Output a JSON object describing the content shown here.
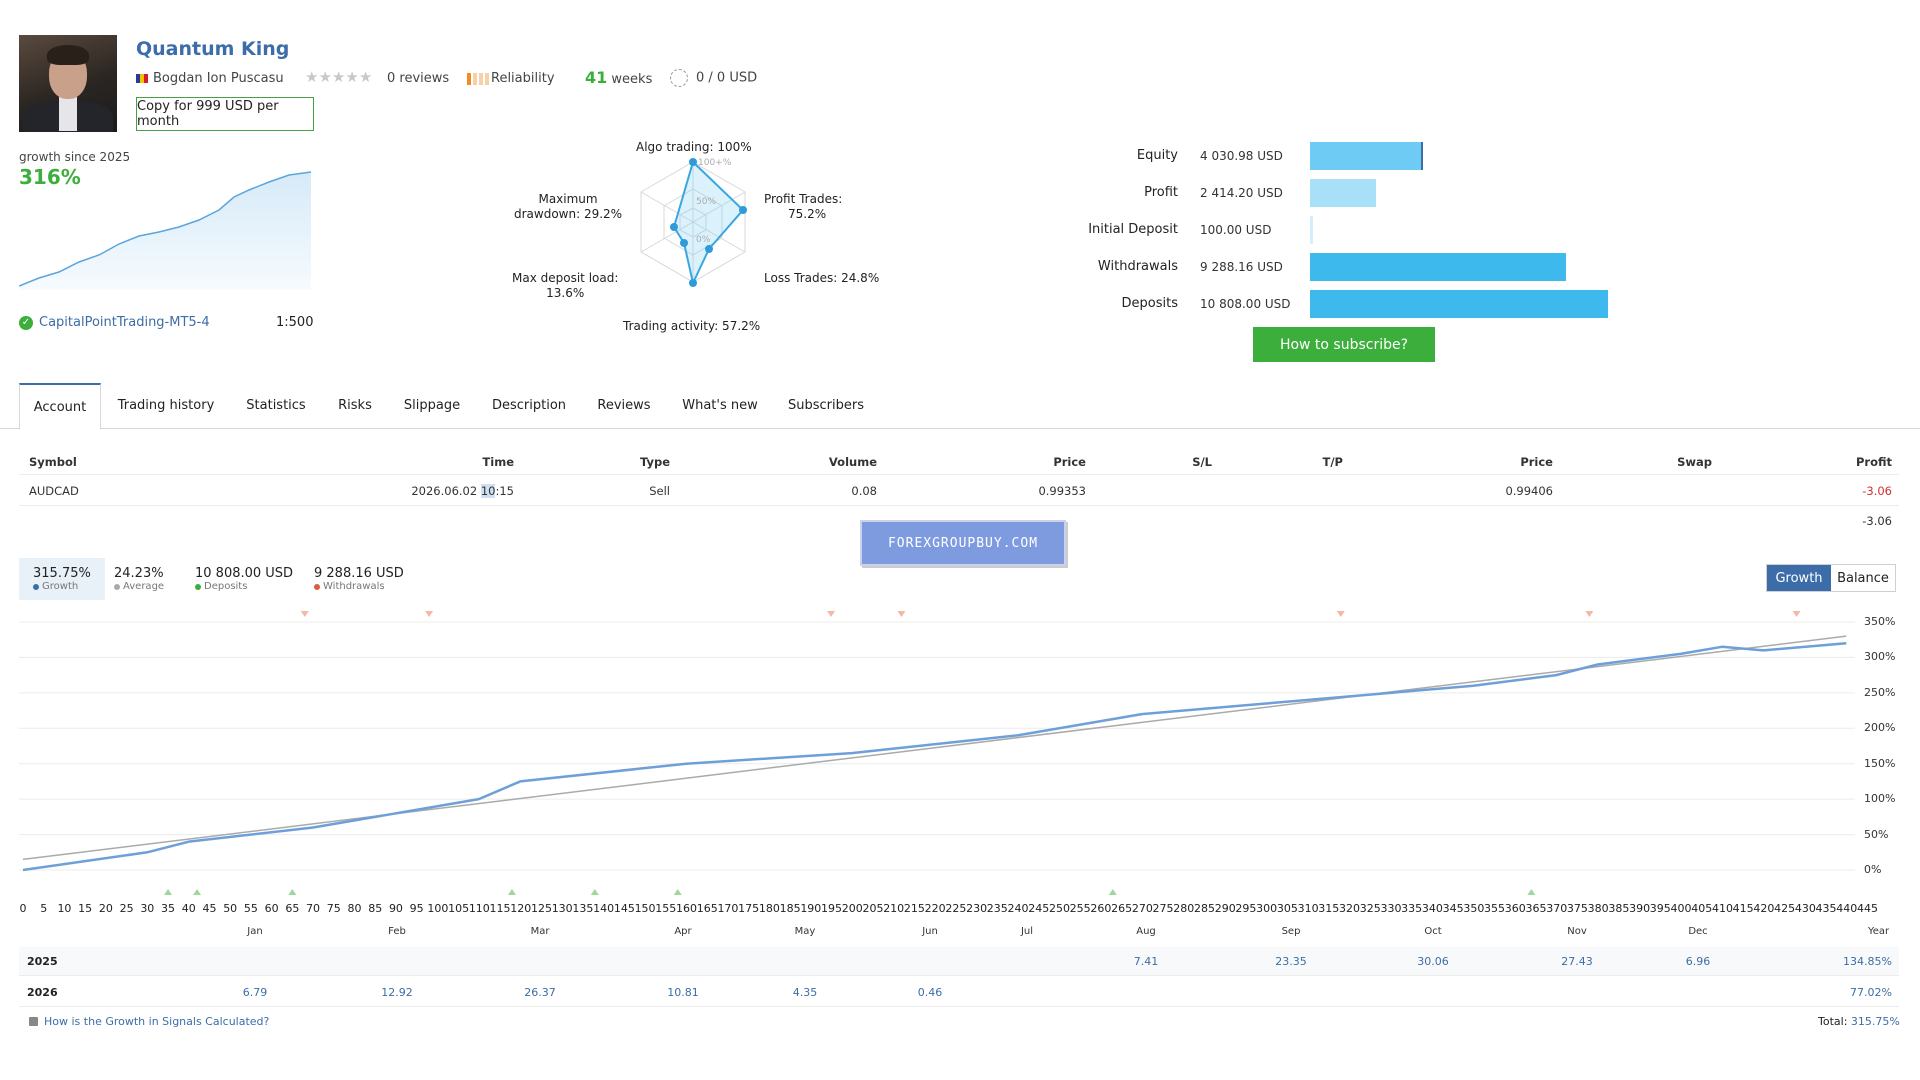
{
  "profile": {
    "name": "Quantum King",
    "author": "Bogdan Ion Puscasu",
    "reviews": "0 reviews",
    "reliability": "Reliability",
    "weeks_value": "41",
    "weeks_unit": "weeks",
    "subscribers": "0 / 0 USD",
    "copy_button": "Copy for 999 USD per month",
    "growth_label": "growth since 2025",
    "growth_value": "316%",
    "broker": "CapitalPointTrading-MT5-4",
    "leverage": "1:500"
  },
  "radar": {
    "algo": "Algo trading: 100%",
    "profit_trades": [
      "Profit Trades:",
      "75.2%"
    ],
    "loss_trades": "Loss Trades: 24.8%",
    "trading_activity": "Trading activity: 57.2%",
    "max_deposit_load": [
      "Max deposit load:",
      "13.6%"
    ],
    "max_drawdown": [
      "Maximum",
      "drawdown: 29.2%"
    ],
    "ring_labels": [
      "100+%",
      "50%",
      "0%"
    ]
  },
  "stats": [
    {
      "label": "Equity",
      "value": "4 030.98 USD",
      "fraction": 0.373,
      "color": "#6ecbf3"
    },
    {
      "label": "Profit",
      "value": "2 414.20 USD",
      "fraction": 0.223,
      "color": "#a8e0f7"
    },
    {
      "label": "Initial Deposit",
      "value": "100.00 USD",
      "fraction": 0.009,
      "color": "#d4eefa"
    },
    {
      "label": "Withdrawals",
      "value": "9 288.16 USD",
      "fraction": 0.859,
      "color": "#3db9ee"
    },
    {
      "label": "Deposits",
      "value": "10 808.00 USD",
      "fraction": 1.0,
      "color": "#3db9ee"
    }
  ],
  "subscribe_button": "How to subscribe?",
  "tabs": [
    "Account",
    "Trading history",
    "Statistics",
    "Risks",
    "Slippage",
    "Description",
    "Reviews",
    "What's new",
    "Subscribers"
  ],
  "positions": {
    "headers": [
      "Symbol",
      "Time",
      "Type",
      "Volume",
      "Price",
      "S/L",
      "T/P",
      "Price",
      "Swap",
      "Profit"
    ],
    "row": {
      "symbol": "AUDCAD",
      "time_a": "2026.06.02 ",
      "time_hl": "10",
      "time_b": ":15",
      "type": "Sell",
      "volume": "0.08",
      "price_open": "0.99353",
      "price_close": "0.99406",
      "profit": "-3.06"
    },
    "total": "-3.06"
  },
  "watermark": "FOREXGROUPBUY.COM",
  "kpis": [
    {
      "value": "315.75%",
      "label": "Growth",
      "color": "#3c6da8"
    },
    {
      "value": "24.23%",
      "label": "Average",
      "color": "#aaaaaa"
    },
    {
      "value": "10 808.00 USD",
      "label": "Deposits",
      "color": "#3cae3c"
    },
    {
      "value": "9 288.16 USD",
      "label": "Withdrawals",
      "color": "#e05a3c"
    }
  ],
  "chart_toggle": {
    "growth": "Growth",
    "balance": "Balance"
  },
  "chart_data": {
    "type": "line",
    "y_ticks": [
      "350%",
      "300%",
      "250%",
      "200%",
      "150%",
      "100%",
      "50%",
      "0%"
    ],
    "ylim": [
      0,
      350
    ],
    "xlim": [
      0,
      445
    ],
    "x_ticks": [
      "0",
      "5",
      "10",
      "15",
      "20",
      "25",
      "30",
      "35",
      "40",
      "45",
      "50",
      "55",
      "60",
      "65",
      "70",
      "75",
      "80",
      "85",
      "90",
      "95",
      "100",
      "105",
      "110",
      "115",
      "120",
      "125",
      "130",
      "135",
      "140",
      "145",
      "150",
      "155",
      "160",
      "165",
      "170",
      "175",
      "180",
      "185",
      "190",
      "195",
      "200",
      "205",
      "210",
      "215",
      "220",
      "225",
      "230",
      "235",
      "240",
      "245",
      "250",
      "255",
      "260",
      "265",
      "270",
      "275",
      "280",
      "285",
      "290",
      "295",
      "300",
      "305",
      "310",
      "315",
      "320",
      "325",
      "330",
      "335",
      "340",
      "345",
      "350",
      "355",
      "360",
      "365",
      "370",
      "375",
      "380",
      "385",
      "390",
      "395",
      "400",
      "405",
      "410",
      "415",
      "420",
      "425",
      "430",
      "435",
      "440",
      "445"
    ],
    "series": [
      {
        "values_x": [
          0,
          30,
          40,
          70,
          110,
          120,
          160,
          200,
          240,
          270,
          300,
          350,
          370,
          380,
          400,
          410,
          420,
          440
        ],
        "values_y": [
          0,
          25,
          40,
          60,
          100,
          125,
          150,
          165,
          190,
          220,
          235,
          260,
          275,
          290,
          305,
          315,
          310,
          320
        ]
      },
      {
        "values_x": [
          0,
          440
        ],
        "values_y": [
          15,
          330
        ]
      }
    ],
    "top_markers_x": [
      68,
      98,
      195,
      212,
      318,
      378,
      428
    ],
    "bottom_markers_x": [
      35,
      42,
      65,
      118,
      138,
      158,
      263,
      364
    ]
  },
  "monthly": {
    "months": [
      "Jan",
      "Feb",
      "Mar",
      "Apr",
      "May",
      "Jun",
      "Jul",
      "Aug",
      "Sep",
      "Oct",
      "Nov",
      "Dec",
      "Year"
    ],
    "rows": [
      {
        "year": "2025",
        "values": [
          "",
          "",
          "",
          "",
          "",
          "",
          "",
          "7.41",
          "23.35",
          "30.06",
          "27.43",
          "6.96"
        ],
        "total": "134.85%"
      },
      {
        "year": "2026",
        "values": [
          "6.79",
          "12.92",
          "26.37",
          "10.81",
          "4.35",
          "0.46",
          "",
          "",
          "",
          "",
          "",
          ""
        ],
        "total": "77.02%"
      }
    ],
    "help": "How is the Growth in Signals Calculated?",
    "total_label": "Total:",
    "total_value": "315.75%"
  }
}
